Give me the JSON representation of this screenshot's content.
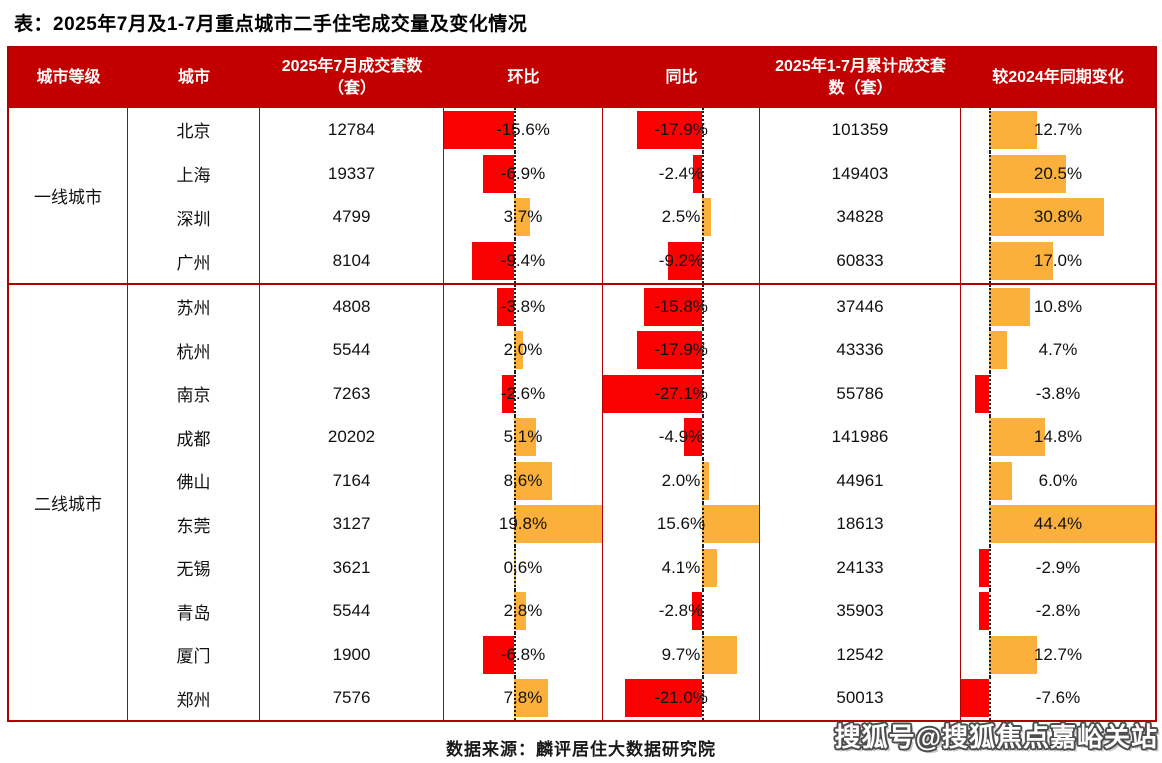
{
  "title": "表：2025年7月及1-7月重点城市二手住宅成交量及变化情况",
  "footer_source": "数据来源：麟评居住大数据研究院",
  "watermark": "搜狐号@搜狐焦点嘉峪关站",
  "colors": {
    "header_bg": "#C30000",
    "table_border": "#B20000",
    "bar_negative": "#FA0202",
    "bar_positive": "#FBB03B",
    "header_text": "#FFFFFF",
    "body_text": "#111111"
  },
  "chart_data": {
    "type": "table",
    "title": "表：2025年7月及1-7月重点城市二手住宅成交量及变化情况",
    "columns": [
      "城市等级",
      "城市",
      "2025年7月成交套数（套）",
      "环比",
      "同比",
      "2025年1-7月累计成交套数（套）",
      "较2024年同期变化"
    ],
    "groups": [
      {
        "tier": "一线城市",
        "rows": [
          {
            "city": "北京",
            "jul_2025_units": 12784,
            "mom_pct": -15.6,
            "yoy_pct": -17.9,
            "cum_jan_jul_units": 101359,
            "vs_2024_pct": 12.7
          },
          {
            "city": "上海",
            "jul_2025_units": 19337,
            "mom_pct": -6.9,
            "yoy_pct": -2.4,
            "cum_jan_jul_units": 149403,
            "vs_2024_pct": 20.5
          },
          {
            "city": "深圳",
            "jul_2025_units": 4799,
            "mom_pct": 3.7,
            "yoy_pct": 2.5,
            "cum_jan_jul_units": 34828,
            "vs_2024_pct": 30.8
          },
          {
            "city": "广州",
            "jul_2025_units": 8104,
            "mom_pct": -9.4,
            "yoy_pct": -9.2,
            "cum_jan_jul_units": 60833,
            "vs_2024_pct": 17.0
          }
        ]
      },
      {
        "tier": "二线城市",
        "rows": [
          {
            "city": "苏州",
            "jul_2025_units": 4808,
            "mom_pct": -3.8,
            "yoy_pct": -15.8,
            "cum_jan_jul_units": 37446,
            "vs_2024_pct": 10.8
          },
          {
            "city": "杭州",
            "jul_2025_units": 5544,
            "mom_pct": 2.0,
            "yoy_pct": -17.9,
            "cum_jan_jul_units": 43336,
            "vs_2024_pct": 4.7
          },
          {
            "city": "南京",
            "jul_2025_units": 7263,
            "mom_pct": -2.6,
            "yoy_pct": -27.1,
            "cum_jan_jul_units": 55786,
            "vs_2024_pct": -3.8
          },
          {
            "city": "成都",
            "jul_2025_units": 20202,
            "mom_pct": 5.1,
            "yoy_pct": -4.9,
            "cum_jan_jul_units": 141986,
            "vs_2024_pct": 14.8
          },
          {
            "city": "佛山",
            "jul_2025_units": 7164,
            "mom_pct": 8.6,
            "yoy_pct": 2.0,
            "cum_jan_jul_units": 44961,
            "vs_2024_pct": 6.0
          },
          {
            "city": "东莞",
            "jul_2025_units": 3127,
            "mom_pct": 19.8,
            "yoy_pct": 15.6,
            "cum_jan_jul_units": 18613,
            "vs_2024_pct": 44.4
          },
          {
            "city": "无锡",
            "jul_2025_units": 3621,
            "mom_pct": 0.6,
            "yoy_pct": 4.1,
            "cum_jan_jul_units": 24133,
            "vs_2024_pct": -2.9
          },
          {
            "city": "青岛",
            "jul_2025_units": 5544,
            "mom_pct": 2.8,
            "yoy_pct": -2.8,
            "cum_jan_jul_units": 35903,
            "vs_2024_pct": -2.8
          },
          {
            "city": "厦门",
            "jul_2025_units": 1900,
            "mom_pct": -6.8,
            "yoy_pct": 9.7,
            "cum_jan_jul_units": 12542,
            "vs_2024_pct": 12.7
          },
          {
            "city": "郑州",
            "jul_2025_units": 7576,
            "mom_pct": 7.8,
            "yoy_pct": -21.0,
            "cum_jan_jul_units": 50013,
            "vs_2024_pct": -7.6
          }
        ]
      }
    ],
    "embedded_bar_axes": {
      "mom_pct": {
        "min": -15.6,
        "max": 19.8
      },
      "yoy_pct": {
        "min": -27.1,
        "max": 15.6
      },
      "vs_2024_pct": {
        "min": -7.6,
        "max": 44.4
      }
    },
    "bar_colors": {
      "negative": "#FA0202",
      "positive": "#FBB03B"
    },
    "value_format": "percent_one_decimal",
    "layout": {
      "grid": false,
      "bar_direction": "horizontal",
      "zero_axis": "dotted"
    }
  }
}
